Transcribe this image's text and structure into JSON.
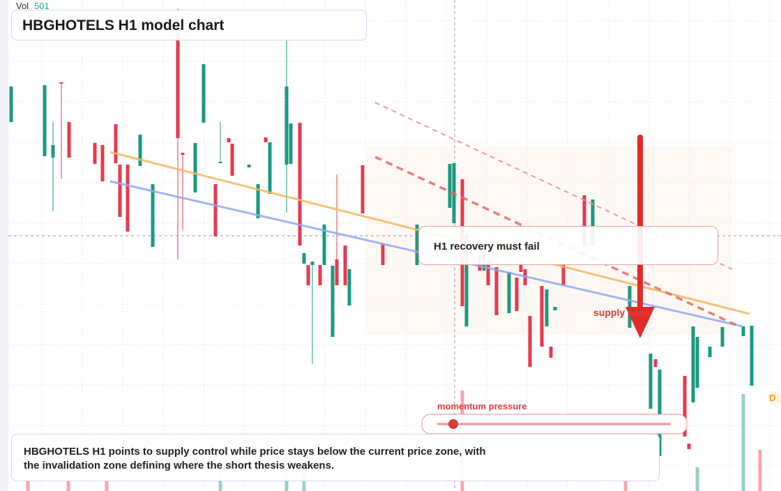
{
  "header": {
    "vol_label": "Vol",
    "vol_value": "501",
    "title": "HBGHOTELS H1 model chart"
  },
  "annotations": {
    "zone_note": "H1 recovery must fail",
    "supply": "supply zone",
    "momentum": "momentum pressure",
    "edge_badge": "D"
  },
  "summary": "HBGHOTELS H1 points to supply control while price stays below the current price zone, with the invalidation zone defining where the short thesis weakens."
}
